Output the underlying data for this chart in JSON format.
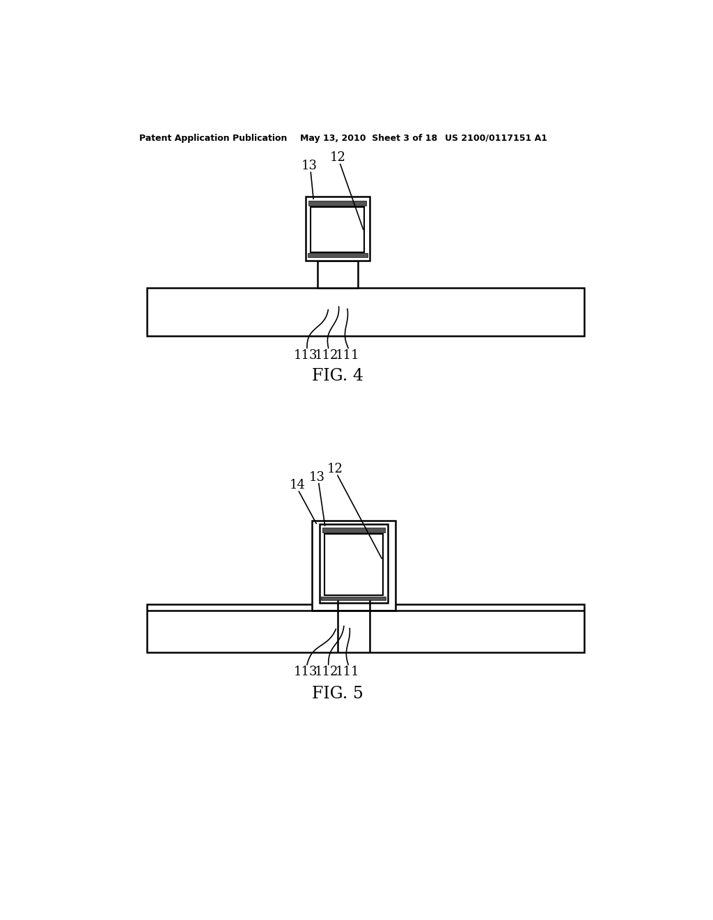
{
  "bg_color": "#ffffff",
  "line_color": "#000000",
  "header_left": "Patent Application Publication",
  "header_mid": "May 13, 2010  Sheet 3 of 18",
  "header_right": "US 2100/0117151 A1",
  "fig4_label": "FIG. 4",
  "fig5_label": "FIG. 5",
  "lw": 1.8
}
